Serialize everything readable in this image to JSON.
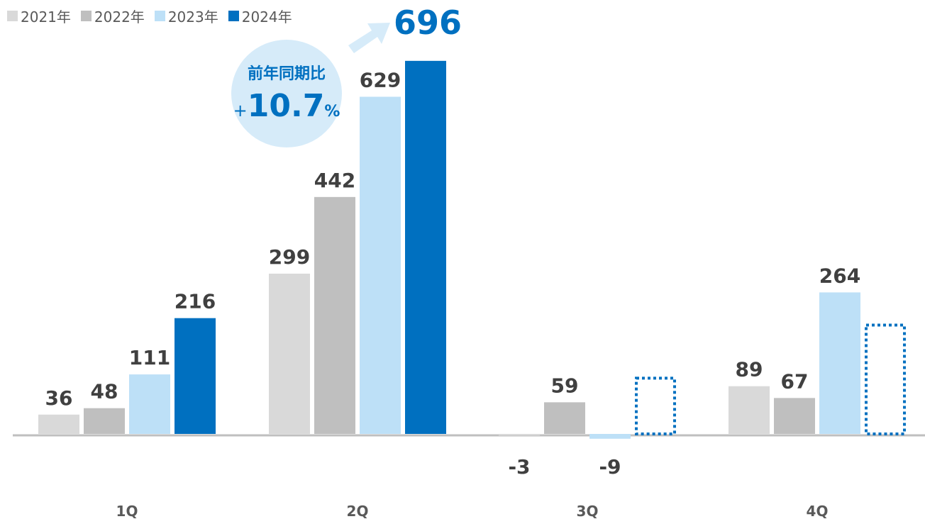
{
  "chart_data": {
    "type": "bar",
    "categories": [
      "1Q",
      "2Q",
      "3Q",
      "4Q"
    ],
    "series": [
      {
        "name": "2021年",
        "color": "#d9d9d9",
        "values": [
          36,
          299,
          -3,
          89
        ]
      },
      {
        "name": "2022年",
        "color": "#bfbfbf",
        "values": [
          48,
          442,
          59,
          67
        ]
      },
      {
        "name": "2023年",
        "color": "#bde0f7",
        "values": [
          111,
          629,
          -9,
          264
        ]
      },
      {
        "name": "2024年",
        "color": "#0070c0",
        "values": [
          216,
          696,
          null,
          null
        ]
      }
    ],
    "forecast_placeholders": {
      "series": "2024年",
      "categories": [
        "3Q",
        "4Q"
      ],
      "style": "dotted-outline"
    },
    "ylim": [
      -60,
      745
    ],
    "grid": false,
    "legend_position": "top-left",
    "xlabel": "",
    "ylabel": "",
    "title": ""
  },
  "annotation": {
    "label": "前年同期比",
    "sign": "+",
    "value": "10.7",
    "unit": "%",
    "highlight_value": "696"
  },
  "colors": {
    "accent": "#0070c0",
    "label_text": "#404040",
    "axis_line": "#bfbfbf",
    "arrow": "#d6ebf9"
  }
}
